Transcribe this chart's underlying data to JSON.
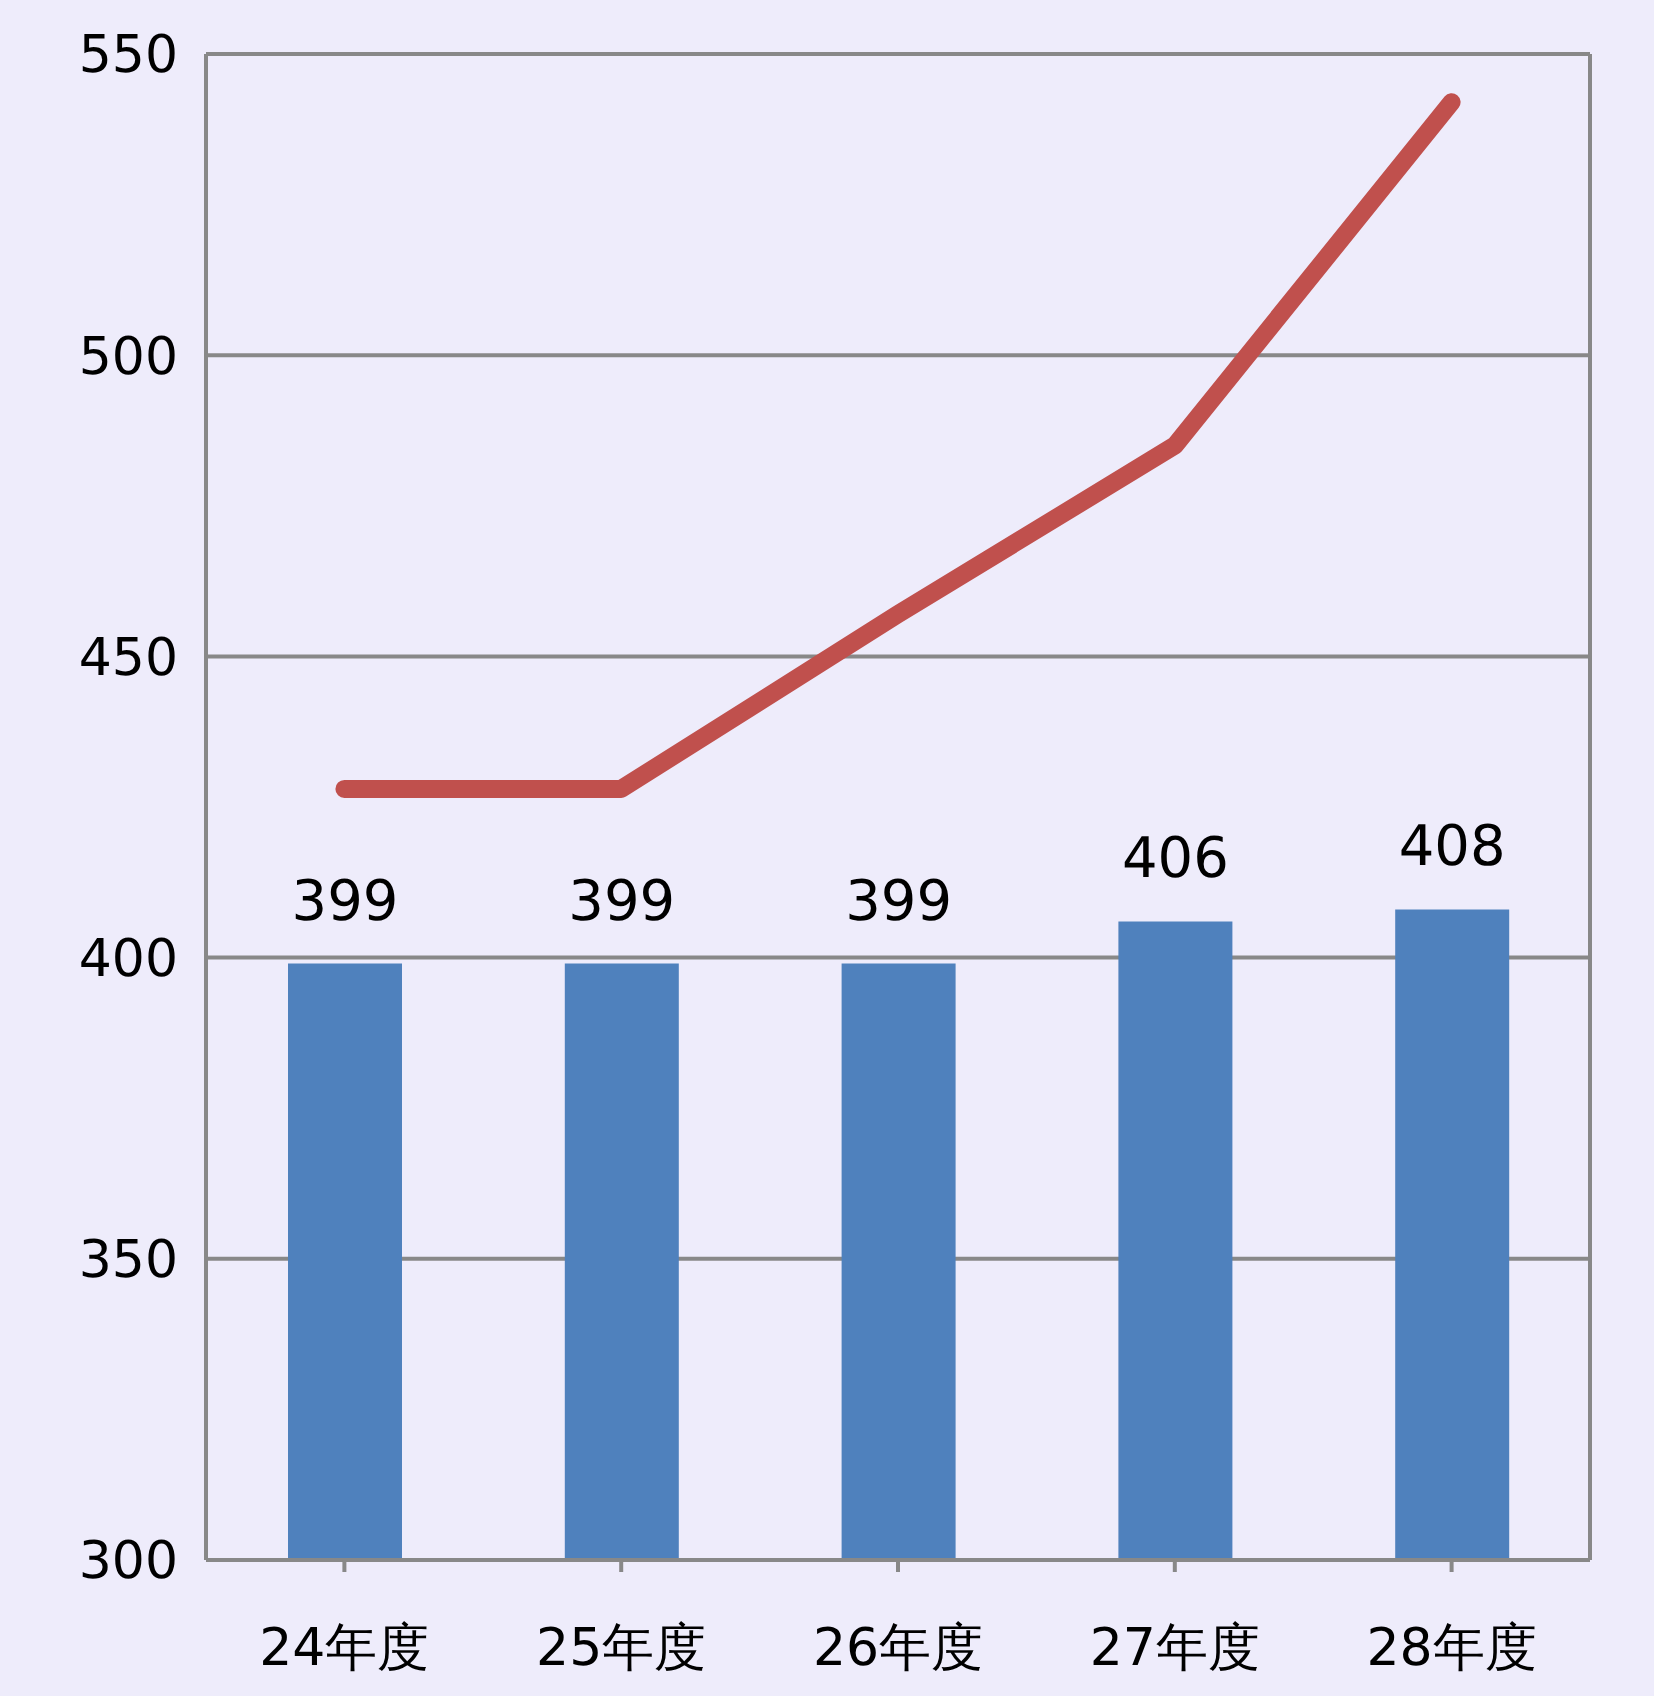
{
  "chart_data": {
    "type": "bar",
    "categories": [
      "24年度",
      "25年度",
      "26年度",
      "27年度",
      "28年度"
    ],
    "series": [
      {
        "color": "#4f81bd",
        "values": [
          399,
          399,
          399,
          406,
          408
        ],
        "value_labels": [
          "399",
          "399",
          "399",
          "406",
          "408"
        ]
      },
      {
        "type": "line",
        "color": "#c0504d",
        "values": [
          428,
          428,
          457,
          485,
          542
        ]
      }
    ],
    "ylim": [
      300,
      550
    ],
    "yticks": [
      300,
      350,
      400,
      450,
      500,
      550
    ],
    "grid": "y",
    "marker": "none",
    "line_style": "solid"
  }
}
